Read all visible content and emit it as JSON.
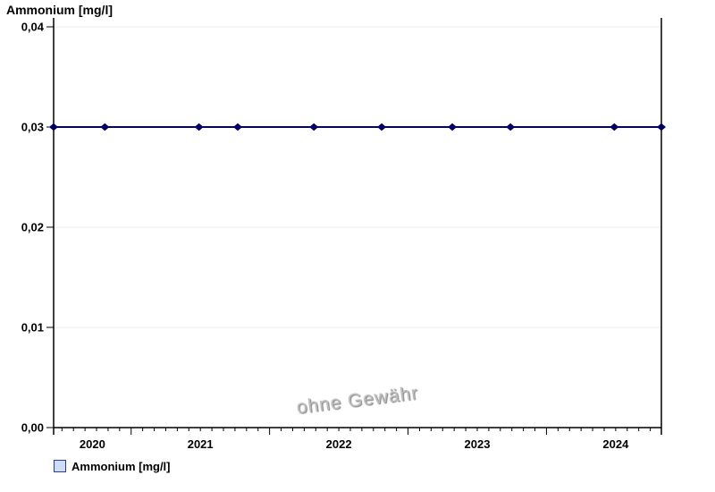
{
  "page": {
    "title": "Ammonium [mg/l]"
  },
  "chart_data": {
    "type": "line",
    "title": "Ammonium [mg/l]",
    "xlabel": "",
    "ylabel": "Ammonium [mg/l]",
    "ylim": [
      0,
      0.04
    ],
    "xlim": [
      2020.44,
      2024.83
    ],
    "grid": true,
    "grid_color": "#ededed",
    "axis_color": "#000000",
    "legend_position": "bottom-left",
    "yticks": [
      {
        "value": 0.0,
        "label": "0,00"
      },
      {
        "value": 0.01,
        "label": "0,01"
      },
      {
        "value": 0.02,
        "label": "0,02"
      },
      {
        "value": 0.03,
        "label": "0,03"
      },
      {
        "value": 0.04,
        "label": "0,04"
      }
    ],
    "x_year_labels": [
      "2020",
      "2021",
      "2022",
      "2023",
      "2024"
    ],
    "series": [
      {
        "name": "Ammonium [mg/l]",
        "line_color": "#000080",
        "marker": "diamond",
        "marker_color": "#000066",
        "x": [
          2020.44,
          2020.81,
          2021.49,
          2021.77,
          2022.32,
          2022.81,
          2023.32,
          2023.74,
          2024.49,
          2024.83
        ],
        "x_dates_approx": [
          "2020-06",
          "2020-10",
          "2021-06",
          "2021-10",
          "2022-04",
          "2022-10",
          "2023-04",
          "2023-09",
          "2024-06",
          "2024-10"
        ],
        "values": [
          0.03,
          0.03,
          0.03,
          0.03,
          0.03,
          0.03,
          0.03,
          0.03,
          0.03,
          0.03
        ]
      }
    ]
  },
  "legend": {
    "label": "Ammonium [mg/l]",
    "swatch_fill": "#cdddf6",
    "swatch_border": "#2b3c8f"
  },
  "watermark": {
    "text": "ohne Gewähr"
  }
}
